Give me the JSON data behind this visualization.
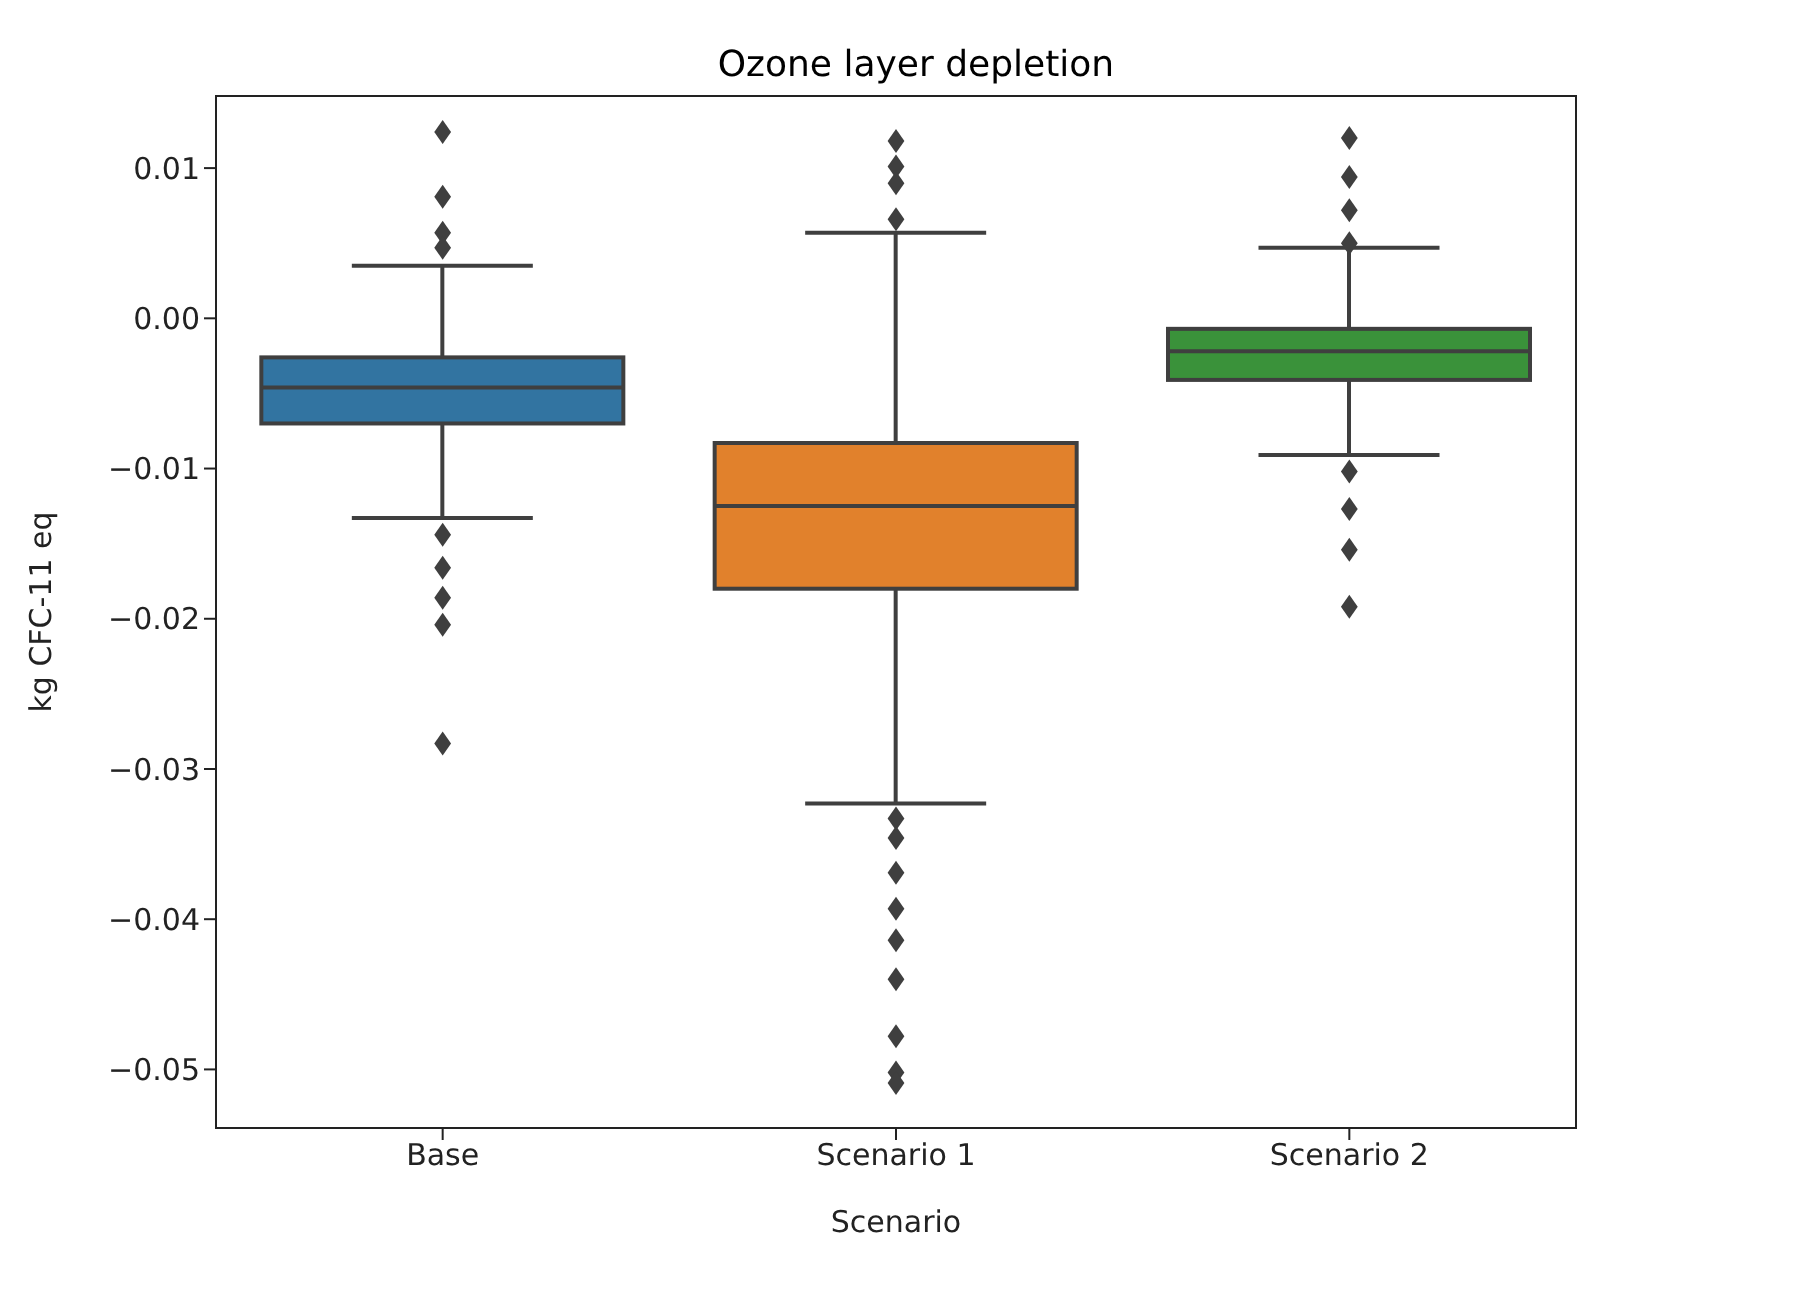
{
  "chart_data": {
    "type": "box",
    "title": "Ozone layer depletion",
    "xlabel": "Scenario",
    "ylabel": "kg CFC-11 eq",
    "categories": [
      "Base",
      "Scenario 1",
      "Scenario 2"
    ],
    "colors": [
      "#3274a1",
      "#e1812c",
      "#3a923a"
    ],
    "boxes": [
      {
        "low": -0.0133,
        "q1": -0.007,
        "median": -0.0046,
        "q3": -0.0026,
        "high": 0.0035,
        "outliers": [
          0.0124,
          0.0081,
          0.0057,
          0.0047,
          -0.0144,
          -0.0166,
          -0.0186,
          -0.0204,
          -0.0283
        ]
      },
      {
        "low": -0.0323,
        "q1": -0.018,
        "median": -0.0125,
        "q3": -0.0083,
        "high": 0.0057,
        "outliers": [
          0.0118,
          0.0101,
          0.009,
          0.0066,
          -0.0333,
          -0.0346,
          -0.0369,
          -0.0393,
          -0.0414,
          -0.044,
          -0.0478,
          -0.0502,
          -0.0509
        ]
      },
      {
        "low": -0.0091,
        "q1": -0.0041,
        "median": -0.0022,
        "q3": -0.0007,
        "high": 0.0047,
        "outliers": [
          0.012,
          0.0094,
          0.0072,
          0.005,
          -0.0102,
          -0.0127,
          -0.0154,
          -0.0192
        ]
      }
    ],
    "ylim": [
      -0.0539,
      0.0148
    ],
    "yticks": [
      {
        "value": 0.01,
        "label": "0.01"
      },
      {
        "value": 0,
        "label": "0.00"
      },
      {
        "value": -0.01,
        "label": "−0.01"
      },
      {
        "value": -0.02,
        "label": "−0.02"
      },
      {
        "value": -0.03,
        "label": "−0.03"
      },
      {
        "value": -0.04,
        "label": "−0.04"
      },
      {
        "value": -0.05,
        "label": "−0.05"
      }
    ],
    "grid": false,
    "legend": false
  }
}
